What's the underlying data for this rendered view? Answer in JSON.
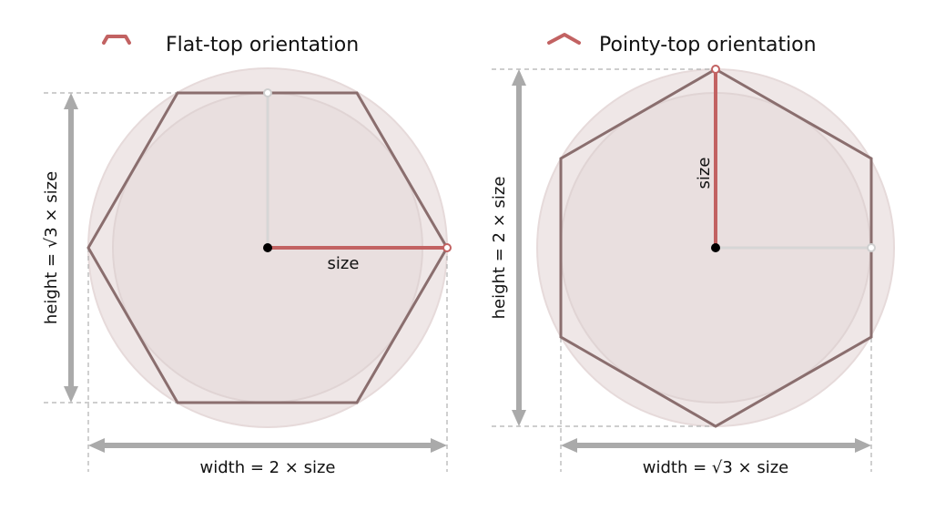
{
  "colors": {
    "hex_outline": "#8a6e6e",
    "accent": "#c26262",
    "dimension": "#aaaaaa",
    "circle_fill": "#e9dfdf",
    "center_dot": "#000000"
  },
  "flat": {
    "title": "Flat-top orientation",
    "size_label": "size",
    "height_label": "height = √3 × size",
    "width_label": "width = 2 × size"
  },
  "pointy": {
    "title": "Pointy-top orientation",
    "size_label": "size",
    "height_label": "height = 2 × size",
    "width_label": "width = √3 × size"
  }
}
